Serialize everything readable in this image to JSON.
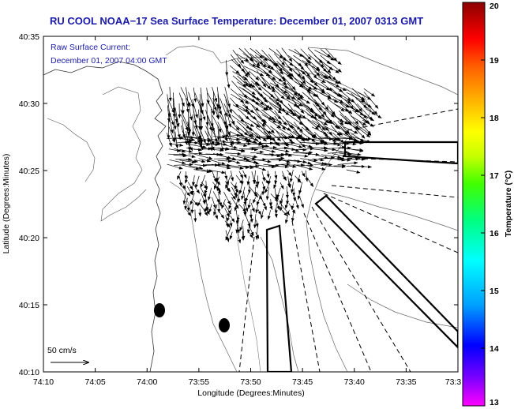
{
  "title": "RU COOL  NOAA−17  Sea Surface Temperature:  December 01, 2007 0313 GMT",
  "annotation_line1": "Raw Surface Current:",
  "annotation_line2": "December 01, 2007 04:00 GMT",
  "scale_label": "50 cm/s",
  "x_axis_label": "Longitude (Degrees:Minutes)",
  "y_axis_label": "Latitude (Degrees:Minutes)",
  "x_ticks": [
    "74:10",
    "74:05",
    "74:00",
    "73:55",
    "73:50",
    "73:45",
    "73:40",
    "73:35",
    "73:3"
  ],
  "y_ticks": [
    "40:35",
    "40:30",
    "40:25",
    "40:20",
    "40:15",
    "40:10"
  ],
  "colorbar": {
    "label": "Temperature (°C)",
    "ticks": [
      "20",
      "19",
      "18",
      "17",
      "16",
      "15",
      "14",
      "13"
    ],
    "min": 13,
    "max": 20,
    "colors": [
      "#ff00ff",
      "#7a00ff",
      "#0000ff",
      "#00a0ff",
      "#00ffff",
      "#00ff80",
      "#40ff00",
      "#c8ff00",
      "#ffff00",
      "#ffb000",
      "#ff6000",
      "#ff0000",
      "#b00000",
      "#8b0000"
    ]
  }
}
